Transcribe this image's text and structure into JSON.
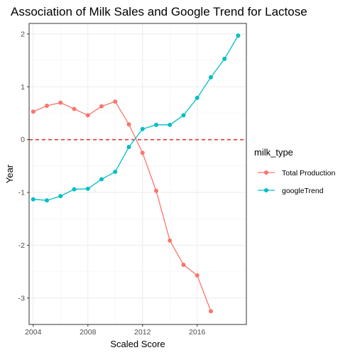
{
  "chart_data": {
    "type": "line",
    "title": "Association of Milk Sales and Google Trend for Lactose",
    "xlabel": "Scaled Score",
    "ylabel": "Year",
    "xlim": [
      2003.7,
      2019.6
    ],
    "ylim": [
      -3.5,
      2.2
    ],
    "x_ticks": [
      2004,
      2008,
      2012,
      2016
    ],
    "x_tick_labels": [
      "2004",
      "2008",
      "2012",
      "2016"
    ],
    "y_ticks": [
      2,
      1,
      0,
      -1,
      -2,
      -3
    ],
    "y_tick_labels": [
      "2",
      "1",
      "0",
      "-1",
      "-2",
      "-3"
    ],
    "grid": true,
    "legend": {
      "title": "milk_type",
      "position": "right"
    },
    "reference_line": {
      "y": 0,
      "color": "#e0393e",
      "style": "dashed"
    },
    "series": [
      {
        "name": "Total Production",
        "color": "#F8766D",
        "x": [
          2004,
          2005,
          2006,
          2007,
          2008,
          2009,
          2010,
          2011,
          2012,
          2013,
          2014,
          2015,
          2016,
          2017
        ],
        "y": [
          0.53,
          0.64,
          0.7,
          0.58,
          0.46,
          0.63,
          0.72,
          0.29,
          -0.25,
          -0.97,
          -1.91,
          -2.37,
          -2.57,
          -3.25
        ]
      },
      {
        "name": "googleTrend",
        "color": "#00BFC4",
        "x": [
          2004,
          2005,
          2006,
          2007,
          2008,
          2009,
          2010,
          2011,
          2012,
          2013,
          2014,
          2015,
          2016,
          2017,
          2018,
          2019
        ],
        "y": [
          -1.13,
          -1.15,
          -1.07,
          -0.94,
          -0.93,
          -0.75,
          -0.61,
          -0.14,
          0.2,
          0.28,
          0.28,
          0.46,
          0.79,
          1.18,
          1.53,
          1.97
        ]
      }
    ]
  }
}
